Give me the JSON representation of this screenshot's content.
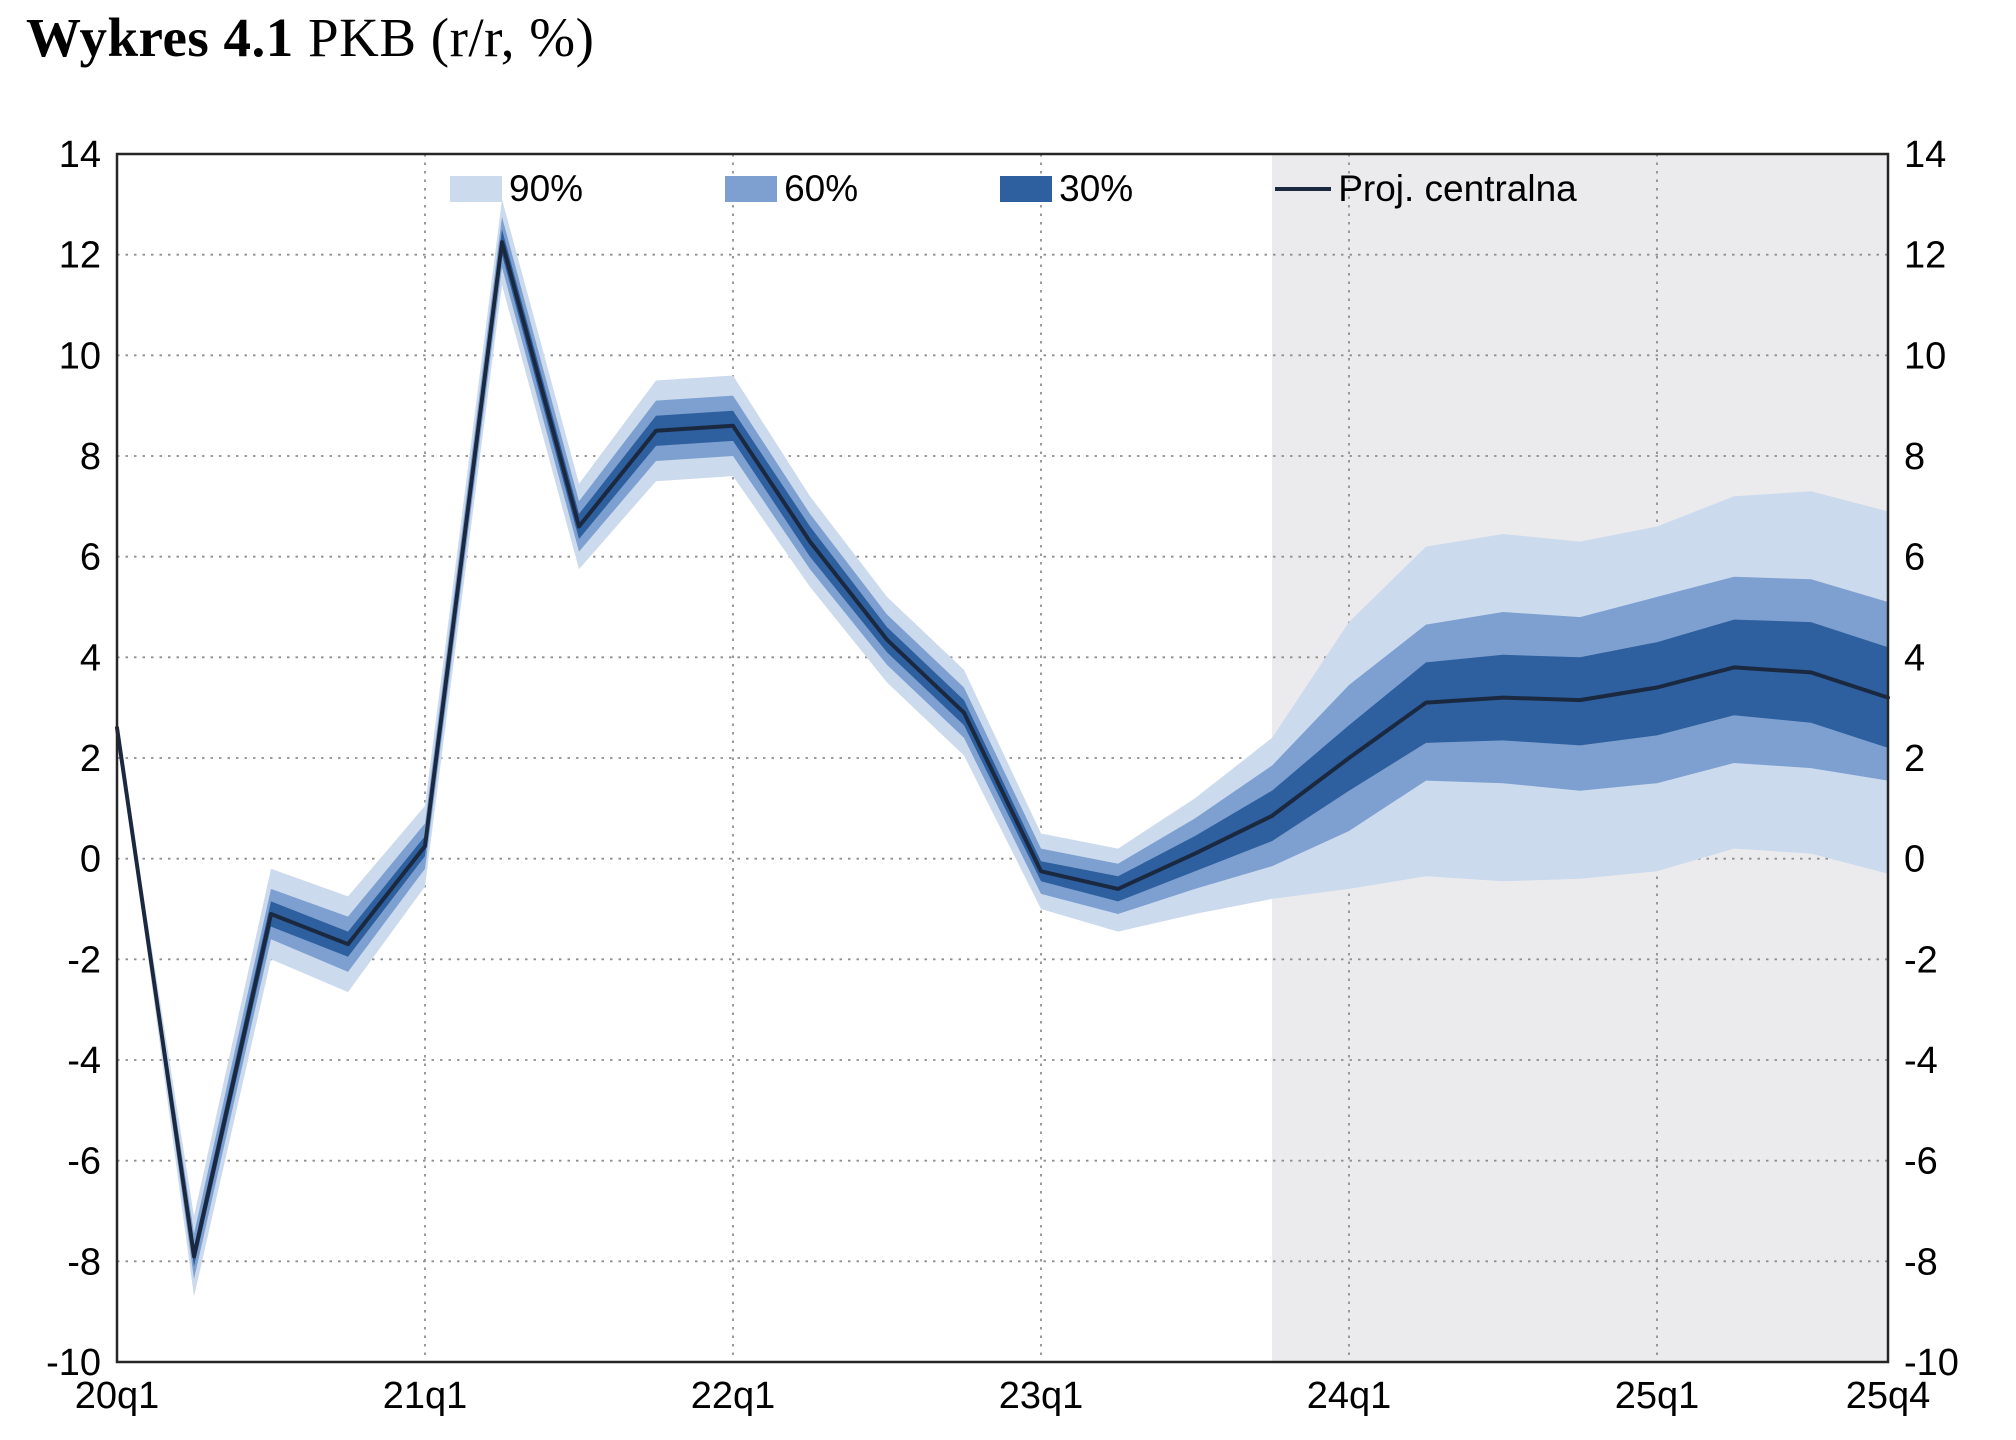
{
  "title": {
    "prefix": "Wykres 4.1",
    "rest": " PKB (r/r, %)"
  },
  "legend": {
    "items": [
      {
        "name": "band-90",
        "label": "90%",
        "type": "band",
        "color": "#ccdaee"
      },
      {
        "name": "band-60",
        "label": "60%",
        "type": "band",
        "color": "#7da0d0"
      },
      {
        "name": "band-30",
        "label": "30%",
        "type": "band",
        "color": "#2e5f9e"
      },
      {
        "name": "central",
        "label": "Proj. centralna",
        "type": "line",
        "color": "#1b2940"
      }
    ]
  },
  "chart_data": {
    "type": "line",
    "subtype": "fan-chart",
    "title": "Wykres 4.1 PKB (r/r, %)",
    "xlabel": "",
    "ylabel": "",
    "ylim": [
      -10,
      14
    ],
    "ytick_step": 2,
    "y_tick_labels": [
      "-10",
      "-8",
      "-6",
      "-4",
      "-2",
      "0",
      "2",
      "4",
      "6",
      "8",
      "10",
      "12",
      "14"
    ],
    "grid": true,
    "x_quarters": [
      "20q1",
      "20q2",
      "20q3",
      "20q4",
      "21q1",
      "21q2",
      "21q3",
      "21q4",
      "22q1",
      "22q2",
      "22q3",
      "22q4",
      "23q1",
      "23q2",
      "23q3",
      "23q4",
      "24q1",
      "24q2",
      "24q3",
      "24q4",
      "25q1",
      "25q2",
      "25q3",
      "25q4"
    ],
    "x_tick_labels": [
      "20q1",
      "21q1",
      "22q1",
      "23q1",
      "24q1",
      "25q1",
      "25q4"
    ],
    "x_tick_indices": [
      0,
      4,
      8,
      12,
      16,
      20,
      23
    ],
    "projection_start_index": 15,
    "series": [
      {
        "name": "Proj. centralna",
        "values": [
          2.6,
          -7.9,
          -1.1,
          -1.7,
          0.25,
          12.25,
          6.6,
          8.5,
          8.6,
          6.3,
          4.35,
          2.9,
          -0.25,
          -0.6,
          0.1,
          0.85,
          2.0,
          3.1,
          3.2,
          3.15,
          3.4,
          3.8,
          3.7,
          3.2
        ]
      }
    ],
    "central": [
      2.6,
      -7.9,
      -1.1,
      -1.7,
      0.25,
      12.25,
      6.6,
      8.5,
      8.6,
      6.3,
      4.35,
      2.9,
      -0.25,
      -0.6,
      0.1,
      0.85,
      2.0,
      3.1,
      3.2,
      3.15,
      3.4,
      3.8,
      3.7,
      3.2
    ],
    "band30": {
      "low": [
        2.6,
        -8.1,
        -1.35,
        -1.95,
        0.05,
        12.0,
        6.35,
        8.2,
        8.3,
        6.0,
        4.1,
        2.65,
        -0.45,
        -0.85,
        -0.25,
        0.35,
        1.35,
        2.3,
        2.35,
        2.25,
        2.45,
        2.85,
        2.7,
        2.2
      ],
      "high": [
        2.6,
        -7.7,
        -0.85,
        -1.45,
        0.45,
        12.5,
        6.85,
        8.8,
        8.9,
        6.6,
        4.6,
        3.15,
        -0.05,
        -0.35,
        0.45,
        1.35,
        2.65,
        3.9,
        4.05,
        4.0,
        4.3,
        4.75,
        4.7,
        4.2
      ]
    },
    "band60": {
      "low": [
        2.6,
        -8.35,
        -1.6,
        -2.25,
        -0.2,
        11.75,
        6.1,
        7.9,
        8.0,
        5.75,
        3.85,
        2.4,
        -0.7,
        -1.1,
        -0.6,
        -0.15,
        0.55,
        1.55,
        1.5,
        1.35,
        1.5,
        1.9,
        1.8,
        1.55
      ],
      "high": [
        2.6,
        -7.45,
        -0.6,
        -1.15,
        0.7,
        12.75,
        7.1,
        9.1,
        9.2,
        6.85,
        4.85,
        3.4,
        0.2,
        -0.1,
        0.8,
        1.85,
        3.45,
        4.65,
        4.9,
        4.8,
        5.2,
        5.6,
        5.55,
        5.1
      ]
    },
    "band90": {
      "low": [
        2.6,
        -8.7,
        -2.0,
        -2.65,
        -0.55,
        11.4,
        5.75,
        7.5,
        7.6,
        5.4,
        3.5,
        2.05,
        -1.0,
        -1.45,
        -1.1,
        -0.8,
        -0.6,
        -0.35,
        -0.45,
        -0.4,
        -0.25,
        0.2,
        0.1,
        -0.3
      ],
      "high": [
        2.6,
        -7.1,
        -0.2,
        -0.75,
        1.05,
        13.1,
        7.45,
        9.5,
        9.6,
        7.2,
        5.2,
        3.75,
        0.5,
        0.2,
        1.2,
        2.4,
        4.7,
        6.2,
        6.45,
        6.3,
        6.6,
        7.2,
        7.3,
        6.9
      ]
    },
    "colors": {
      "band90": "#ccdaee",
      "band60": "#7da0d0",
      "band30": "#2e5f9e",
      "central": "#1b2940",
      "projection_bg": "#ebebed",
      "grid": "#8f8f8f",
      "frame": "#262626",
      "text": "#000000"
    },
    "legend_position": "top-inside"
  }
}
